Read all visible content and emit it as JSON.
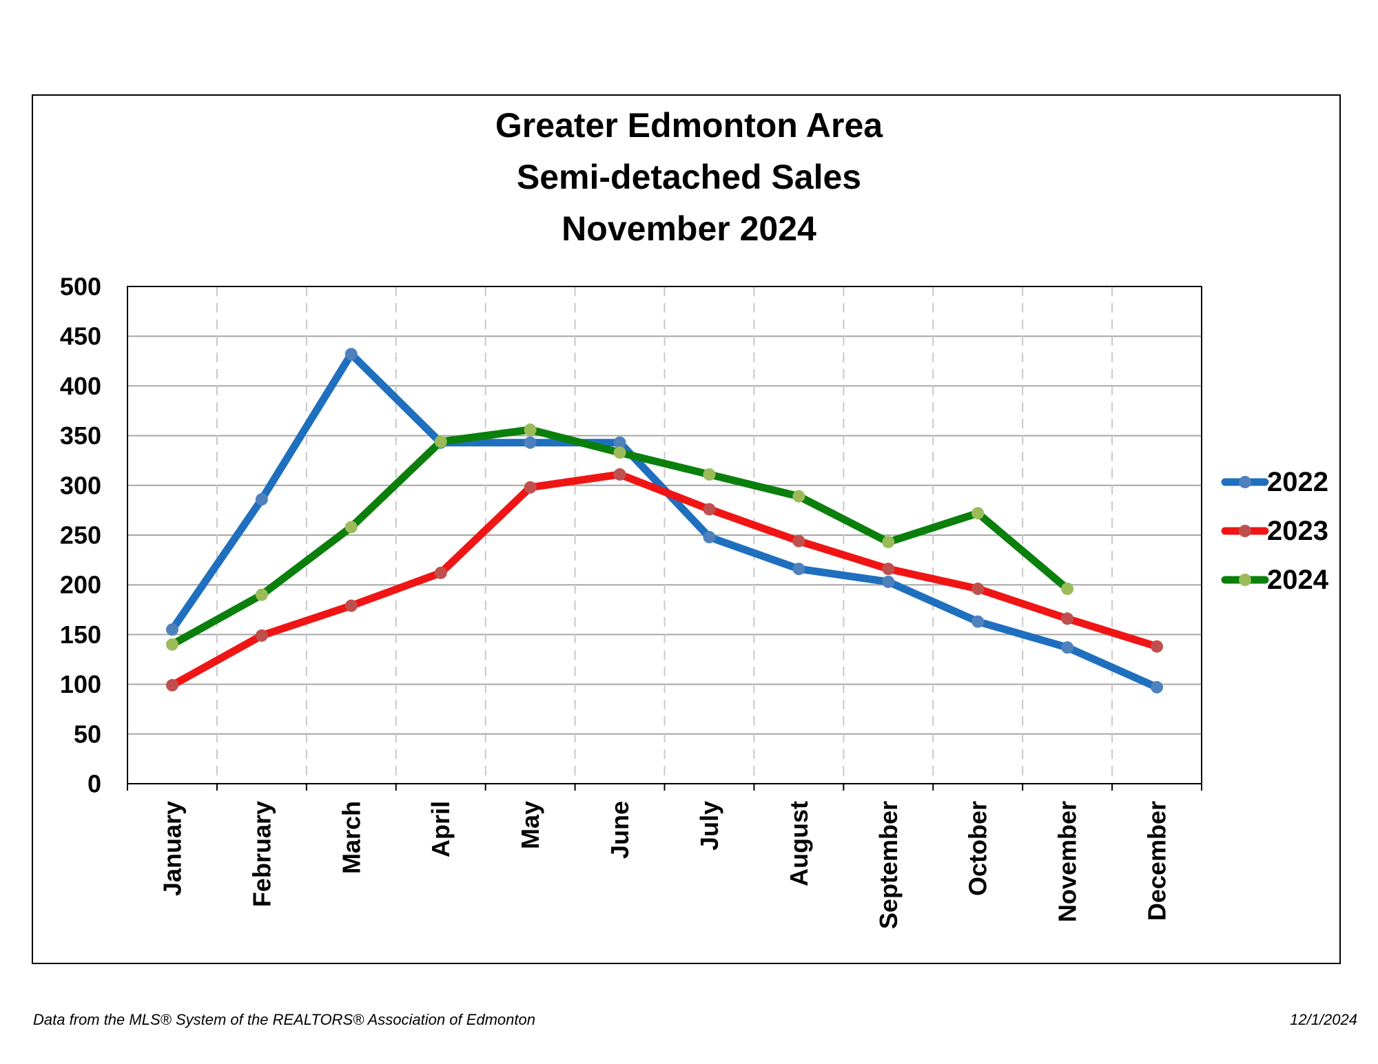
{
  "chart_data": {
    "type": "line",
    "title": [
      "Greater Edmonton Area",
      "Semi-detached Sales",
      "November 2024"
    ],
    "xlabel": "",
    "ylabel": "",
    "categories": [
      "January",
      "February",
      "March",
      "April",
      "May",
      "June",
      "July",
      "August",
      "September",
      "October",
      "November",
      "December"
    ],
    "ylim": [
      0,
      500
    ],
    "yticks": [
      0,
      50,
      100,
      150,
      200,
      250,
      300,
      350,
      400,
      450,
      500
    ],
    "grid": {
      "horizontal": "solid",
      "vertical": "dashed"
    },
    "legend_position": "right",
    "series": [
      {
        "name": "2022",
        "color": "#1F6FBF",
        "marker_color": "#4F81BD",
        "values": [
          155,
          286,
          432,
          343,
          343,
          343,
          248,
          216,
          203,
          163,
          137,
          97
        ]
      },
      {
        "name": "2023",
        "color": "#F01515",
        "marker_color": "#C0504D",
        "values": [
          99,
          149,
          179,
          212,
          298,
          311,
          276,
          244,
          216,
          196,
          166,
          138
        ]
      },
      {
        "name": "2024",
        "color": "#0B7F0B",
        "marker_color": "#9BBB59",
        "values": [
          140,
          190,
          258,
          344,
          356,
          333,
          311,
          289,
          243,
          272,
          196,
          null
        ]
      }
    ]
  },
  "footer": {
    "source": "Data from the MLS® System of the REALTORS® Association of Edmonton",
    "date": "12/1/2024"
  }
}
